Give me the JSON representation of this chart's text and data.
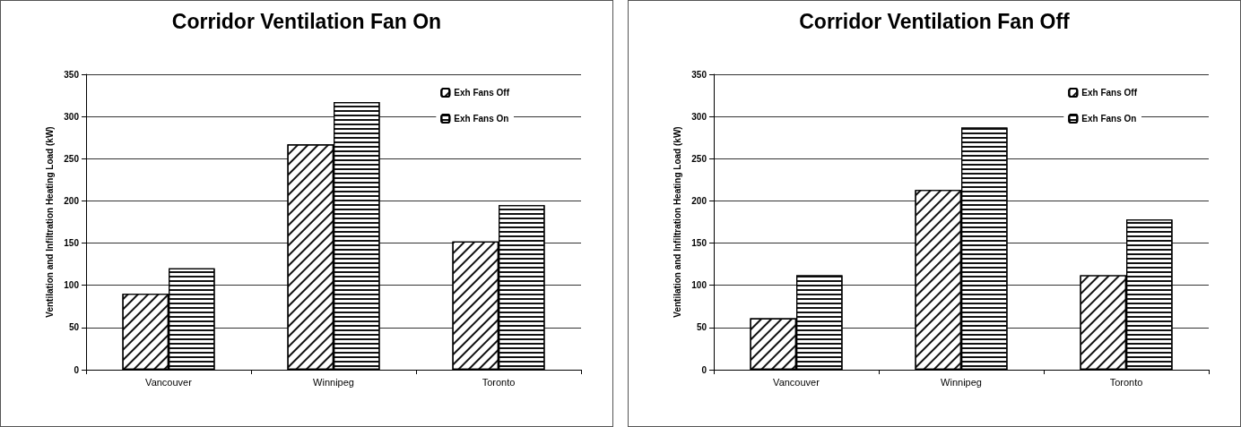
{
  "chart_data": [
    {
      "type": "bar",
      "title": "Corridor Ventilation Fan On",
      "ylabel": "Ventilation and Infiltration Heating Load (kW)",
      "categories": [
        "Vancouver",
        "Winnipeg",
        "Toronto"
      ],
      "series": [
        {
          "name": "Exh Fans Off",
          "color": "#ffffff",
          "values": [
            90,
            267,
            152
          ]
        },
        {
          "name": "Exh Fans On",
          "color": "#ffffff",
          "values": [
            120,
            317,
            195
          ]
        }
      ],
      "ylim": [
        0,
        350
      ],
      "yticks": [
        0,
        50,
        100,
        150,
        200,
        250,
        300,
        350
      ],
      "grid": "y",
      "legend": "top right"
    },
    {
      "type": "bar",
      "title": "Corridor Ventilation Fan Off",
      "ylabel": "Ventilation and Infiltration Heating Load (kW)",
      "categories": [
        "Vancouver",
        "Winnipeg",
        "Toronto"
      ],
      "series": [
        {
          "name": "Exh Fans Off",
          "color": "#ffffff",
          "values": [
            61,
            213,
            112
          ]
        },
        {
          "name": "Exh Fans On",
          "color": "#ffffff",
          "values": [
            112,
            287,
            178
          ]
        }
      ],
      "ylim": [
        0,
        350
      ],
      "yticks": [
        0,
        50,
        100,
        150,
        200,
        250,
        300,
        350
      ],
      "grid": "y",
      "legend": "top right"
    }
  ]
}
